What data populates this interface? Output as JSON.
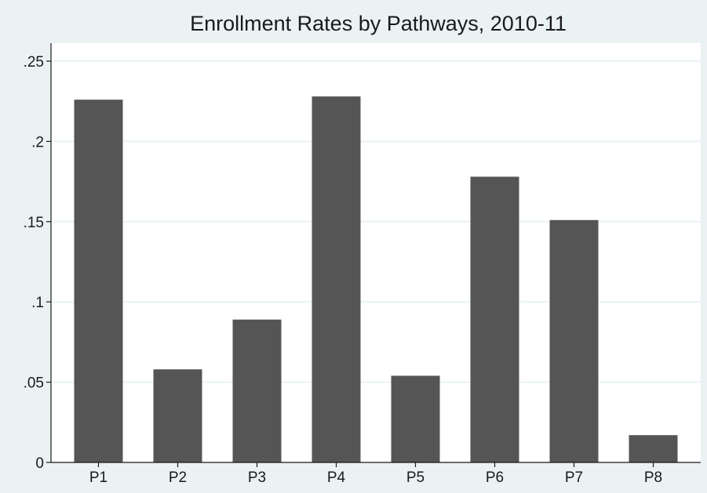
{
  "chart_data": {
    "type": "bar",
    "title": "Enrollment Rates by Pathways, 2010-11",
    "xlabel": "",
    "ylabel": "",
    "categories": [
      "P1",
      "P2",
      "P3",
      "P4",
      "P5",
      "P6",
      "P7",
      "P8"
    ],
    "values": [
      0.226,
      0.058,
      0.089,
      0.228,
      0.054,
      0.178,
      0.151,
      0.017
    ],
    "ylim": [
      0,
      0.25
    ],
    "yticks": [
      0,
      0.05,
      0.1,
      0.15,
      0.2,
      0.25
    ],
    "ytick_labels": [
      "0",
      ".05",
      ".1",
      ".15",
      ".2",
      ".25"
    ],
    "grid": true,
    "legend": "none",
    "colors": {
      "background": "#eaf2f3",
      "plot_area": "#ffffff",
      "bar": "#555555"
    }
  }
}
